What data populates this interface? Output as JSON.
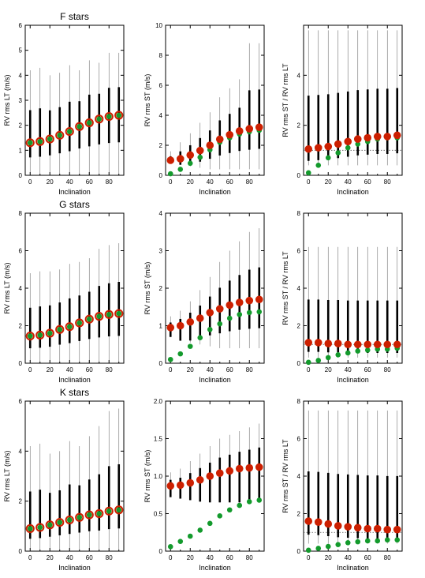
{
  "chart_data": [
    {
      "type": "scatter",
      "title": "F stars",
      "xlabel": "Inclination",
      "ylabel": "RV rms LT (m/s)",
      "xlim": [
        -5,
        95
      ],
      "ylim": [
        0,
        6
      ],
      "xticks": [
        0,
        20,
        40,
        60,
        80
      ],
      "yticks": [
        0,
        1,
        2,
        3,
        4,
        5,
        6
      ],
      "ytick_labels": [
        "0",
        "1",
        "2",
        "3",
        "4",
        "5",
        "6"
      ],
      "x": [
        0,
        10,
        20,
        30,
        40,
        50,
        60,
        70,
        80,
        90
      ],
      "red_means": [
        1.3,
        1.35,
        1.45,
        1.6,
        1.75,
        1.95,
        2.1,
        2.25,
        2.35,
        2.4
      ],
      "green_means": [
        1.3,
        1.35,
        1.45,
        1.6,
        1.75,
        1.95,
        2.1,
        2.25,
        2.35,
        2.4
      ],
      "spread_max": [
        4.2,
        4.3,
        4.0,
        4.1,
        4.4,
        4.2,
        4.6,
        4.5,
        4.9,
        4.9
      ],
      "spread_min": [
        0.05,
        0.05,
        0.05,
        0.05,
        0.05,
        0.05,
        0.05,
        0.05,
        0.05,
        0.05
      ],
      "reference_line": null
    },
    {
      "type": "scatter",
      "title": "",
      "xlabel": "Inclination",
      "ylabel": "RV rms ST (m/s)",
      "xlim": [
        -5,
        95
      ],
      "ylim": [
        0,
        10
      ],
      "xticks": [
        0,
        20,
        40,
        60,
        80
      ],
      "yticks": [
        0,
        2,
        4,
        6,
        8,
        10
      ],
      "ytick_labels": [
        "0",
        "2",
        "4",
        "6",
        "8",
        "10"
      ],
      "x": [
        0,
        10,
        20,
        30,
        40,
        50,
        60,
        70,
        80,
        90
      ],
      "red_means": [
        1.0,
        1.1,
        1.35,
        1.65,
        2.0,
        2.4,
        2.7,
        2.95,
        3.1,
        3.2
      ],
      "green_means": [
        0.1,
        0.4,
        0.8,
        1.2,
        1.7,
        2.2,
        2.5,
        2.75,
        2.9,
        3.0
      ],
      "spread_max": [
        1.6,
        2.2,
        2.8,
        3.5,
        4.2,
        5.2,
        5.8,
        6.4,
        8.8,
        8.8
      ],
      "spread_min": [
        0.8,
        0.7,
        0.6,
        0.5,
        0.4,
        0.4,
        0.4,
        0.4,
        0.4,
        0.4
      ],
      "reference_line": null
    },
    {
      "type": "scatter",
      "title": "",
      "xlabel": "Inclination",
      "ylabel": "RV rms ST / RV rms LT",
      "xlim": [
        -5,
        95
      ],
      "ylim": [
        0,
        6
      ],
      "xticks": [
        0,
        20,
        40,
        60,
        80
      ],
      "yticks": [
        0,
        2,
        4
      ],
      "ytick_labels": [
        "0",
        "2",
        "4"
      ],
      "x": [
        0,
        10,
        20,
        30,
        40,
        50,
        60,
        70,
        80,
        90
      ],
      "red_means": [
        1.05,
        1.1,
        1.15,
        1.25,
        1.35,
        1.45,
        1.5,
        1.55,
        1.55,
        1.6
      ],
      "green_means": [
        0.1,
        0.4,
        0.7,
        0.9,
        1.1,
        1.25,
        1.35,
        1.45,
        1.5,
        1.5
      ],
      "spread_max": [
        5.8,
        5.8,
        5.8,
        5.8,
        5.8,
        5.8,
        5.8,
        5.8,
        5.8,
        5.8
      ],
      "spread_min": [
        0.4,
        0.4,
        0.4,
        0.4,
        0.4,
        0.4,
        0.4,
        0.4,
        0.4,
        0.4
      ],
      "reference_line": 1.0
    },
    {
      "type": "scatter",
      "title": "G stars",
      "xlabel": "Inclination",
      "ylabel": "RV rms LT (m/s)",
      "xlim": [
        -5,
        95
      ],
      "ylim": [
        0,
        8
      ],
      "xticks": [
        0,
        20,
        40,
        60,
        80
      ],
      "yticks": [
        0,
        2,
        4,
        6,
        8
      ],
      "ytick_labels": [
        "0",
        "2",
        "4",
        "6",
        "8"
      ],
      "x": [
        0,
        10,
        20,
        30,
        40,
        50,
        60,
        70,
        80,
        90
      ],
      "red_means": [
        1.45,
        1.5,
        1.6,
        1.8,
        1.95,
        2.15,
        2.35,
        2.5,
        2.6,
        2.65
      ],
      "green_means": [
        1.45,
        1.5,
        1.6,
        1.8,
        1.95,
        2.15,
        2.35,
        2.5,
        2.6,
        2.65
      ],
      "spread_max": [
        4.8,
        4.9,
        4.9,
        5.0,
        5.3,
        5.4,
        5.6,
        6.1,
        6.3,
        6.4
      ],
      "spread_min": [
        0.05,
        0.05,
        0.05,
        0.05,
        0.05,
        0.05,
        0.05,
        0.05,
        0.05,
        0.05
      ],
      "reference_line": null
    },
    {
      "type": "scatter",
      "title": "",
      "xlabel": "Inclination",
      "ylabel": "RV rms ST (m/s)",
      "xlim": [
        -5,
        95
      ],
      "ylim": [
        0,
        4
      ],
      "xticks": [
        0,
        20,
        40,
        60,
        80
      ],
      "yticks": [
        0,
        1,
        2,
        3,
        4
      ],
      "ytick_labels": [
        "0",
        "1",
        "2",
        "3",
        "4"
      ],
      "x": [
        0,
        10,
        20,
        30,
        40,
        50,
        60,
        70,
        80,
        90
      ],
      "red_means": [
        0.95,
        1.0,
        1.1,
        1.2,
        1.35,
        1.45,
        1.55,
        1.62,
        1.67,
        1.7
      ],
      "green_means": [
        0.1,
        0.25,
        0.45,
        0.68,
        0.9,
        1.05,
        1.2,
        1.3,
        1.35,
        1.37
      ],
      "spread_max": [
        1.25,
        1.4,
        1.65,
        1.95,
        2.3,
        2.7,
        3.0,
        3.25,
        3.5,
        3.6
      ],
      "spread_min": [
        0.7,
        0.6,
        0.55,
        0.5,
        0.45,
        0.4,
        0.4,
        0.4,
        0.4,
        0.4
      ],
      "reference_line": null
    },
    {
      "type": "scatter",
      "title": "",
      "xlabel": "Inclination",
      "ylabel": "RV rms ST / RV rms LT",
      "xlim": [
        -5,
        95
      ],
      "ylim": [
        0,
        8
      ],
      "xticks": [
        0,
        20,
        40,
        60,
        80
      ],
      "yticks": [
        0,
        2,
        4,
        6,
        8
      ],
      "ytick_labels": [
        "0",
        "2",
        "4",
        "6",
        "8"
      ],
      "x": [
        0,
        10,
        20,
        30,
        40,
        50,
        60,
        70,
        80,
        90
      ],
      "red_means": [
        1.1,
        1.1,
        1.05,
        1.05,
        1.0,
        1.0,
        1.0,
        1.0,
        1.0,
        1.0
      ],
      "green_means": [
        0.05,
        0.15,
        0.3,
        0.45,
        0.55,
        0.65,
        0.7,
        0.75,
        0.75,
        0.8
      ],
      "spread_max": [
        6.2,
        6.2,
        6.2,
        6.2,
        6.2,
        6.2,
        6.2,
        6.2,
        6.2,
        6.2
      ],
      "spread_min": [
        0.3,
        0.3,
        0.3,
        0.3,
        0.3,
        0.3,
        0.3,
        0.3,
        0.3,
        0.3
      ],
      "reference_line": 1.0
    },
    {
      "type": "scatter",
      "title": "K stars",
      "xlabel": "Inclination",
      "ylabel": "RV rms LT (m/s)",
      "xlim": [
        -5,
        95
      ],
      "ylim": [
        0,
        6
      ],
      "xticks": [
        0,
        20,
        40,
        60,
        80
      ],
      "yticks": [
        0,
        2,
        4,
        6
      ],
      "ytick_labels": [
        "0",
        "2",
        "4",
        "6"
      ],
      "x": [
        0,
        10,
        20,
        30,
        40,
        50,
        60,
        70,
        80,
        90
      ],
      "red_means": [
        0.9,
        0.95,
        1.05,
        1.15,
        1.25,
        1.35,
        1.45,
        1.5,
        1.6,
        1.65
      ],
      "green_means": [
        0.9,
        0.95,
        1.05,
        1.15,
        1.25,
        1.35,
        1.45,
        1.5,
        1.6,
        1.65
      ],
      "spread_max": [
        4.2,
        4.3,
        3.9,
        4.0,
        4.4,
        4.2,
        4.6,
        5.0,
        5.6,
        5.7
      ],
      "spread_min": [
        0.05,
        0.05,
        0.05,
        0.05,
        0.05,
        0.05,
        0.05,
        0.05,
        0.05,
        0.05
      ],
      "reference_line": null
    },
    {
      "type": "scatter",
      "title": "",
      "xlabel": "Inclination",
      "ylabel": "RV rms ST (m/s)",
      "xlim": [
        -5,
        95
      ],
      "ylim": [
        0,
        2
      ],
      "xticks": [
        0,
        20,
        40,
        60,
        80
      ],
      "yticks": [
        0,
        0.5,
        1.0,
        1.5,
        2.0
      ],
      "ytick_labels": [
        "0",
        "0.5",
        "1.0",
        "1.5",
        "2.0"
      ],
      "x": [
        0,
        10,
        20,
        30,
        40,
        50,
        60,
        70,
        80,
        90
      ],
      "red_means": [
        0.87,
        0.88,
        0.91,
        0.95,
        1.0,
        1.04,
        1.07,
        1.1,
        1.11,
        1.12
      ],
      "green_means": [
        0.06,
        0.13,
        0.2,
        0.28,
        0.37,
        0.47,
        0.55,
        0.61,
        0.66,
        0.68
      ],
      "spread_max": [
        1.05,
        1.1,
        1.2,
        1.3,
        1.4,
        1.5,
        1.55,
        1.6,
        1.65,
        1.7
      ],
      "spread_min": [
        0.72,
        0.7,
        0.68,
        0.66,
        0.65,
        0.65,
        0.65,
        0.65,
        0.65,
        0.65
      ],
      "reference_line": null
    },
    {
      "type": "scatter",
      "title": "",
      "xlabel": "Inclination",
      "ylabel": "RV rms ST / RV rms LT",
      "xlim": [
        -5,
        95
      ],
      "ylim": [
        0,
        8
      ],
      "xticks": [
        0,
        20,
        40,
        60,
        80
      ],
      "yticks": [
        0,
        2,
        4,
        6,
        8
      ],
      "ytick_labels": [
        "0",
        "2",
        "4",
        "6",
        "8"
      ],
      "x": [
        0,
        10,
        20,
        30,
        40,
        50,
        60,
        70,
        80,
        90
      ],
      "red_means": [
        1.6,
        1.55,
        1.45,
        1.35,
        1.3,
        1.25,
        1.2,
        1.2,
        1.15,
        1.15
      ],
      "green_means": [
        0.05,
        0.15,
        0.25,
        0.35,
        0.45,
        0.5,
        0.55,
        0.55,
        0.6,
        0.6
      ],
      "spread_max": [
        7.5,
        7.5,
        7.5,
        7.5,
        7.5,
        7.5,
        7.5,
        7.5,
        7.5,
        7.5
      ],
      "spread_min": [
        0.4,
        0.4,
        0.4,
        0.4,
        0.4,
        0.4,
        0.4,
        0.4,
        0.4,
        0.4
      ],
      "reference_line": 1.0
    }
  ],
  "colors": {
    "red_marker": "#cc1f00",
    "green_marker": "#139a2c",
    "spread": "#000000",
    "reference_line": "#555555"
  }
}
